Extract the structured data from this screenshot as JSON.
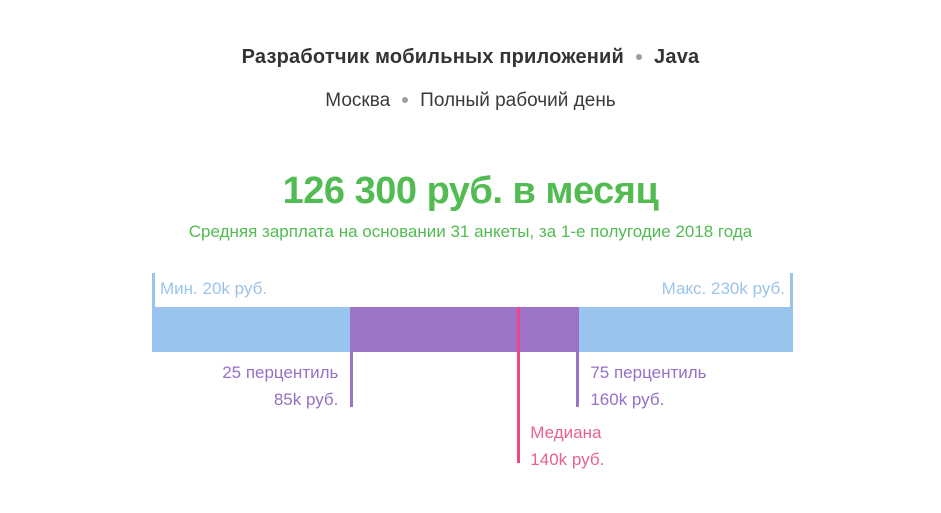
{
  "page": {
    "title_line": {
      "position": "Разработчик мобильных приложений",
      "technology": "Java"
    },
    "subtitle_line": {
      "city": "Москва",
      "employment": "Полный рабочий день"
    },
    "salary": {
      "headline": "126 300 руб. в месяц",
      "description": "Средняя зарплата на основании 31 анкеты, за 1-е полугодие 2018 года"
    }
  },
  "chart": {
    "labels": {
      "min": "Мин. 20k руб.",
      "max": "Макс. 230k руб.",
      "p25_line1": "25 перцентиль",
      "p25_line2": "85k руб.",
      "p75_line1": "75 перцентиль",
      "p75_line2": "160k руб.",
      "median_line1": "Медиана",
      "median_line2": "140k руб."
    }
  },
  "chart_data": {
    "type": "range-bar",
    "title": "126 300 руб. в месяц",
    "subtitle": "Средняя зарплата на основании 31 анкеты, за 1-е полугодие 2018 года",
    "units": "тыс. руб. в месяц",
    "axis_range": [
      20,
      230
    ],
    "min": 20,
    "percentile_25": 85,
    "median": 140,
    "percentile_75": 160,
    "max": 230,
    "average_monthly_rub": 126300,
    "sample_size": 31,
    "period": "1-е полугодие 2018 года",
    "grid": false,
    "legend": false
  },
  "icons": {
    "header_separator": "dot-icon"
  },
  "colors": {
    "green": "#52bb52",
    "bar_blue": "#98c4ee",
    "blue_label": "#9cc4ea",
    "purple": "#9b74c8",
    "purple_label": "#9670c5",
    "pink": "#f04687",
    "pink_label": "#e8618f",
    "text_dark": "#333333",
    "dot_gray": "#9e9e9e"
  }
}
